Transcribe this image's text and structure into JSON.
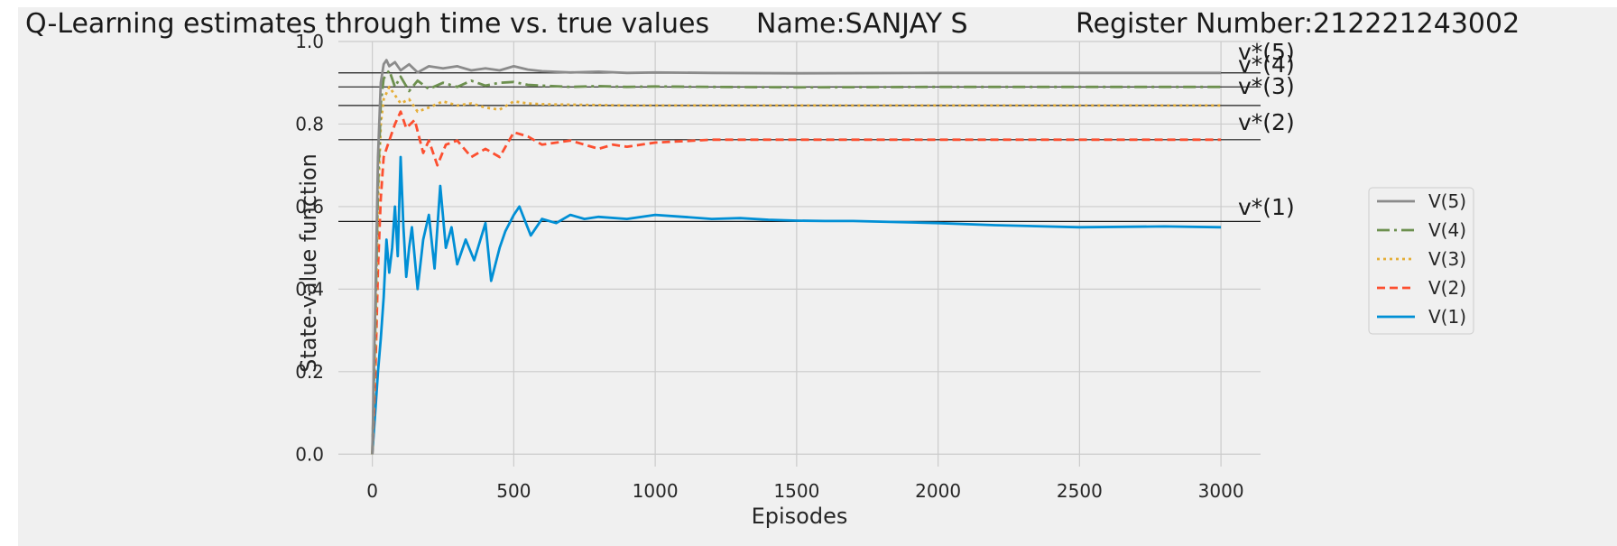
{
  "chart_data": {
    "type": "line",
    "title_parts": [
      "Q-Learning estimates through time vs. true values",
      "Name:SANJAY S",
      "Register Number:212221243002"
    ],
    "xlabel": "Episodes",
    "ylabel": "State-value function",
    "xlim": [
      -120,
      3140
    ],
    "ylim": [
      -0.03,
      1.0
    ],
    "x_ticks": [
      0,
      500,
      1000,
      1500,
      2000,
      2500,
      3000
    ],
    "y_ticks": [
      0.0,
      0.2,
      0.4,
      0.6,
      0.8,
      1.0
    ],
    "x_tick_labels": [
      "0",
      "500",
      "1000",
      "1500",
      "2000",
      "2500",
      "3000"
    ],
    "y_tick_labels": [
      "0.0",
      "0.2",
      "0.4",
      "0.6",
      "0.8",
      "1.0"
    ],
    "grid": true,
    "legend_position": "right",
    "true_values": [
      {
        "label": "v*(5)",
        "value": 0.924
      },
      {
        "label": "v*(4)",
        "value": 0.89
      },
      {
        "label": "v*(3)",
        "value": 0.845
      },
      {
        "label": "v*(2)",
        "value": 0.762
      },
      {
        "label": "v*(1)",
        "value": 0.564
      }
    ],
    "series": [
      {
        "name": "V(5)",
        "color": "#8b8b8b",
        "dash": "none",
        "x": [
          0,
          10,
          20,
          30,
          40,
          50,
          60,
          80,
          100,
          130,
          160,
          200,
          250,
          300,
          350,
          400,
          450,
          500,
          550,
          600,
          700,
          800,
          900,
          1000,
          1200,
          1500,
          2000,
          2500,
          3000
        ],
        "y": [
          0.0,
          0.35,
          0.72,
          0.9,
          0.945,
          0.955,
          0.94,
          0.95,
          0.93,
          0.945,
          0.925,
          0.94,
          0.935,
          0.94,
          0.93,
          0.935,
          0.93,
          0.94,
          0.932,
          0.928,
          0.925,
          0.927,
          0.924,
          0.925,
          0.924,
          0.923,
          0.924,
          0.924,
          0.924
        ]
      },
      {
        "name": "V(4)",
        "color": "#6d904f",
        "dash": "14,5,3,5",
        "x": [
          0,
          10,
          20,
          30,
          40,
          60,
          80,
          100,
          130,
          160,
          200,
          250,
          300,
          350,
          400,
          450,
          500,
          550,
          600,
          700,
          800,
          900,
          1000,
          1200,
          1500,
          2000,
          2500,
          3000
        ],
        "y": [
          0.0,
          0.3,
          0.65,
          0.85,
          0.91,
          0.93,
          0.89,
          0.915,
          0.88,
          0.905,
          0.885,
          0.9,
          0.89,
          0.905,
          0.893,
          0.9,
          0.902,
          0.895,
          0.893,
          0.89,
          0.892,
          0.89,
          0.891,
          0.89,
          0.889,
          0.89,
          0.89,
          0.89
        ]
      },
      {
        "name": "V(3)",
        "color": "#e5ae38",
        "dash": "3,4",
        "x": [
          0,
          10,
          20,
          30,
          40,
          60,
          80,
          100,
          130,
          160,
          200,
          250,
          300,
          350,
          400,
          450,
          500,
          550,
          600,
          700,
          800,
          900,
          1000,
          1200,
          1500,
          2000,
          2500,
          3000
        ],
        "y": [
          0.0,
          0.25,
          0.6,
          0.8,
          0.86,
          0.89,
          0.87,
          0.85,
          0.86,
          0.83,
          0.84,
          0.855,
          0.845,
          0.85,
          0.84,
          0.835,
          0.855,
          0.85,
          0.848,
          0.847,
          0.846,
          0.845,
          0.845,
          0.845,
          0.845,
          0.845,
          0.845,
          0.845
        ]
      },
      {
        "name": "V(2)",
        "color": "#fc4f30",
        "dash": "9,5",
        "x": [
          0,
          10,
          20,
          30,
          40,
          60,
          80,
          100,
          120,
          150,
          180,
          200,
          230,
          260,
          300,
          350,
          400,
          450,
          500,
          550,
          600,
          700,
          800,
          850,
          900,
          1000,
          1200,
          1500,
          2000,
          2500,
          3000
        ],
        "y": [
          0.0,
          0.18,
          0.45,
          0.62,
          0.72,
          0.76,
          0.8,
          0.83,
          0.79,
          0.81,
          0.73,
          0.76,
          0.7,
          0.75,
          0.76,
          0.72,
          0.74,
          0.72,
          0.78,
          0.77,
          0.75,
          0.76,
          0.74,
          0.75,
          0.745,
          0.755,
          0.762,
          0.762,
          0.762,
          0.762,
          0.762
        ]
      },
      {
        "name": "V(1)",
        "color": "#008fd5",
        "dash": "none",
        "x": [
          0,
          10,
          20,
          30,
          40,
          50,
          60,
          70,
          80,
          90,
          100,
          110,
          120,
          130,
          140,
          160,
          180,
          200,
          220,
          240,
          260,
          280,
          300,
          330,
          360,
          400,
          420,
          450,
          470,
          500,
          520,
          560,
          600,
          650,
          700,
          750,
          800,
          900,
          1000,
          1100,
          1200,
          1300,
          1400,
          1500,
          1600,
          1700,
          2000,
          2200,
          2500,
          2800,
          3000
        ],
        "y": [
          0.0,
          0.1,
          0.2,
          0.28,
          0.38,
          0.52,
          0.44,
          0.5,
          0.6,
          0.48,
          0.72,
          0.55,
          0.43,
          0.5,
          0.55,
          0.4,
          0.52,
          0.58,
          0.45,
          0.65,
          0.5,
          0.55,
          0.46,
          0.52,
          0.47,
          0.56,
          0.42,
          0.5,
          0.54,
          0.58,
          0.6,
          0.53,
          0.57,
          0.56,
          0.58,
          0.57,
          0.575,
          0.57,
          0.58,
          0.575,
          0.57,
          0.572,
          0.568,
          0.566,
          0.565,
          0.565,
          0.56,
          0.555,
          0.55,
          0.552,
          0.55
        ]
      }
    ]
  }
}
